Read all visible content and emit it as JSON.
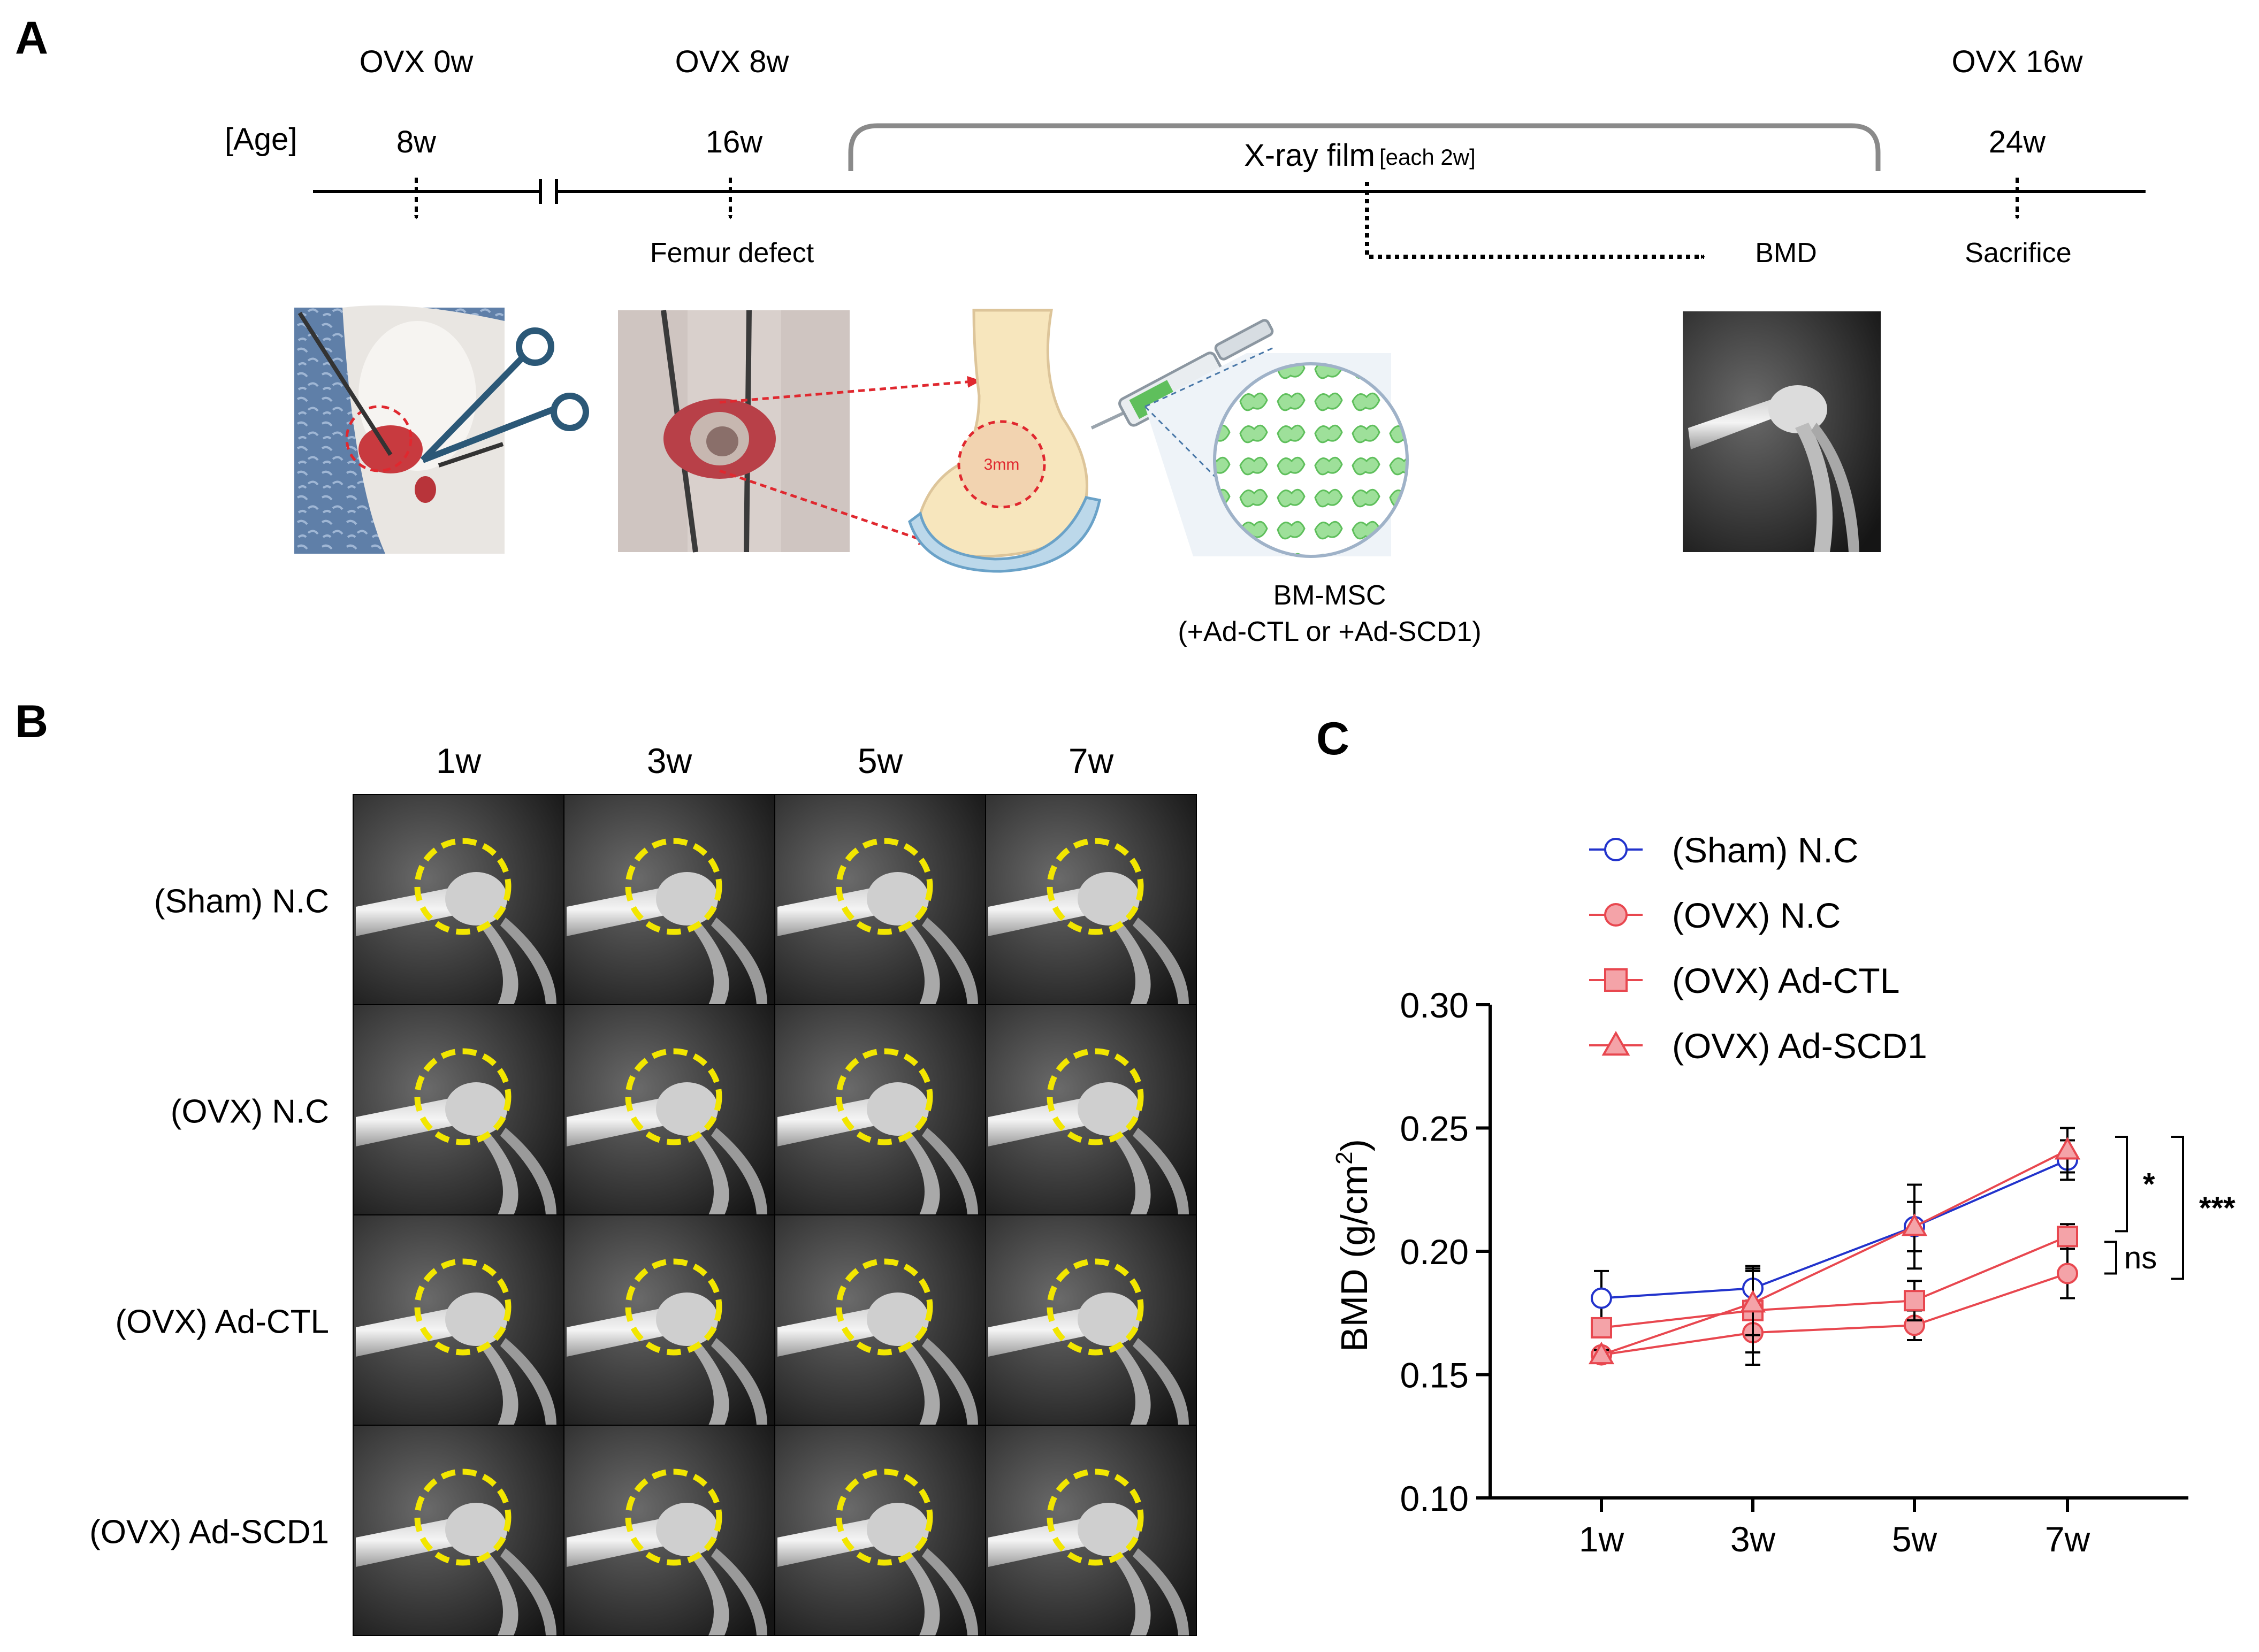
{
  "panel_labels": {
    "a": "A",
    "b": "B",
    "c": "C"
  },
  "timeline": {
    "age_label": "[Age]",
    "stages": [
      {
        "ovx": "OVX 0w",
        "age": "8w"
      },
      {
        "ovx": "OVX 8w",
        "age": "16w"
      },
      {
        "ovx": "OVX 16w",
        "age": "24w"
      }
    ],
    "xray_label": "X-ray film",
    "xray_interval": "[each 2w]",
    "events": {
      "femur_defect": "Femur defect",
      "bmd": "BMD",
      "sacrifice": "Sacrifice"
    },
    "defect_size": "3mm",
    "cell_label": "BM-MSC",
    "cell_sublabel": "(+Ad-CTL or +Ad-SCD1)"
  },
  "xray_grid": {
    "columns": [
      "1w",
      "3w",
      "5w",
      "7w"
    ],
    "rows": [
      "(Sham)  N.C",
      "(OVX) N.C",
      "(OVX) Ad-CTL",
      "(OVX) Ad-SCD1"
    ]
  },
  "colors": {
    "blue": "#2233cc",
    "red": "#e8474f",
    "red_fill": "#f4a3a8",
    "yellow": "#f2e600"
  },
  "chart_data": {
    "type": "line",
    "title": "",
    "xlabel": "",
    "ylabel_main": "BMD (g/cm",
    "ylabel_sup": "2",
    "ylabel_end": ")",
    "categories": [
      "1w",
      "3w",
      "5w",
      "7w"
    ],
    "ylim": [
      0.1,
      0.3
    ],
    "yticks": [
      "0.10",
      "0.15",
      "0.20",
      "0.25",
      "0.30"
    ],
    "series": [
      {
        "name": "(Sham) N.C",
        "marker": "circle-open",
        "color": "#2233cc",
        "values": [
          0.181,
          0.185,
          0.21,
          0.237
        ],
        "errors": [
          0.011,
          0.009,
          0.017,
          0.008
        ]
      },
      {
        "name": "(OVX) N.C",
        "marker": "circle",
        "color": "#e8474f",
        "values": [
          0.158,
          0.167,
          0.17,
          0.191
        ],
        "errors": [
          0.002,
          0.013,
          0.006,
          0.01
        ]
      },
      {
        "name": "(OVX) Ad-CTL",
        "marker": "square",
        "color": "#e8474f",
        "values": [
          0.169,
          0.176,
          0.18,
          0.206
        ],
        "errors": [
          0.003,
          0.017,
          0.008,
          0.005
        ]
      },
      {
        "name": "(OVX) Ad-SCD1",
        "marker": "triangle",
        "color": "#e8474f",
        "values": [
          0.158,
          0.179,
          0.21,
          0.241
        ],
        "errors": [
          0.002,
          0.013,
          0.01,
          0.009
        ]
      }
    ],
    "significance": [
      {
        "label": "*",
        "between": [
          "(OVX) Ad-SCD1",
          "(OVX) Ad-CTL"
        ]
      },
      {
        "label": "ns",
        "between": [
          "(OVX) Ad-CTL",
          "(OVX) N.C"
        ]
      },
      {
        "label": "***",
        "between": [
          "(OVX) Ad-SCD1",
          "(OVX) N.C"
        ]
      }
    ]
  }
}
